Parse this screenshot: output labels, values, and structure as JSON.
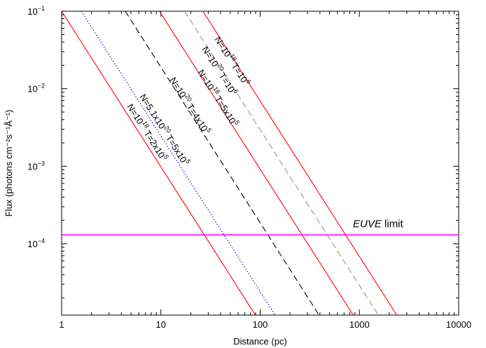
{
  "chart_data": {
    "type": "line",
    "xlabel": "Distance (pc)",
    "ylabel": "Flux (photons cm⁻²s⁻¹Å⁻¹)",
    "x_scale": "log",
    "y_scale": "log",
    "xlim": [
      1,
      10000
    ],
    "ylim": [
      1.2e-05,
      0.1
    ],
    "x_ticks": [
      {
        "value": 1,
        "label": "1"
      },
      {
        "value": 10,
        "label": "10"
      },
      {
        "value": 100,
        "label": "100"
      },
      {
        "value": 1000,
        "label": "1000"
      },
      {
        "value": 10000,
        "label": "10000"
      }
    ],
    "y_ticks": [
      {
        "value": 0.0001,
        "mantissa": "10",
        "exponent": "−4"
      },
      {
        "value": 0.001,
        "mantissa": "10",
        "exponent": "−3"
      },
      {
        "value": 0.01,
        "mantissa": "10",
        "exponent": "−2"
      },
      {
        "value": 0.1,
        "mantissa": "10",
        "exponent": "−1"
      }
    ],
    "series": [
      {
        "name": "N=10¹⁸ T=2x10⁵",
        "color": "#ff0000",
        "dash": "solid",
        "x": [
          1,
          89.6
        ],
        "y": [
          0.1,
          1.2e-05
        ]
      },
      {
        "name": "N=5.1x10²⁰ T=5x10⁵",
        "color": "#0000ff",
        "dash": "dotted",
        "x": [
          1.58,
          141.6
        ],
        "y": [
          0.1,
          1.2e-05
        ]
      },
      {
        "name": "N=10²⁰ T=4x10⁵",
        "color": "#000000",
        "dash": "dashed",
        "x": [
          4.37,
          392
        ],
        "y": [
          0.1,
          1.2e-05
        ]
      },
      {
        "name": "N=10¹⁸ T=5x10⁵",
        "color": "#ff0000",
        "dash": "solid",
        "x": [
          9.66,
          866
        ],
        "y": [
          0.1,
          1.2e-05
        ]
      },
      {
        "name": "N=10²⁰ T=10⁶",
        "color": "#c08080",
        "dash": "dashed",
        "x": [
          17.3,
          1552
        ],
        "y": [
          0.1,
          1.2e-05
        ]
      },
      {
        "name": "N=10¹⁸ T=10⁶",
        "color": "#ff0000",
        "dash": "solid",
        "x": [
          26.5,
          2378
        ],
        "y": [
          0.1,
          1.2e-05
        ]
      }
    ],
    "hlines": [
      {
        "name": "EUVE limit",
        "y": 0.00013,
        "color": "#ff00ff"
      }
    ],
    "annotations": [
      {
        "text": "EUVE limit",
        "italic_part": "EUVE",
        "plain_part": " limit"
      },
      {
        "text": "N=10 18 T=2x10 5",
        "parts": [
          [
            "N=10",
            "18",
            " T=2x10",
            "5"
          ]
        ]
      },
      {
        "text": "N=5.1x10 20 T=5x10 5",
        "parts": [
          [
            "N=5.1x10",
            "20",
            " T=5x10",
            "5"
          ]
        ]
      },
      {
        "text": "N=10 20 T=4x10 5",
        "parts": [
          [
            "N=10",
            "20",
            " T=4x10",
            "5"
          ]
        ]
      },
      {
        "text": "N=10 18 T=5x10 5",
        "parts": [
          [
            "N=10",
            "18",
            " T=5x10",
            "5"
          ]
        ]
      },
      {
        "text": "N=10 20 T=10 6",
        "parts": [
          [
            "N=10",
            "20",
            " T=10",
            "6"
          ]
        ]
      },
      {
        "text": "N=10 18 T=10 6",
        "parts": [
          [
            "N=10",
            "18",
            " T=10",
            "6"
          ]
        ]
      }
    ],
    "grid": false,
    "legend": "none"
  }
}
